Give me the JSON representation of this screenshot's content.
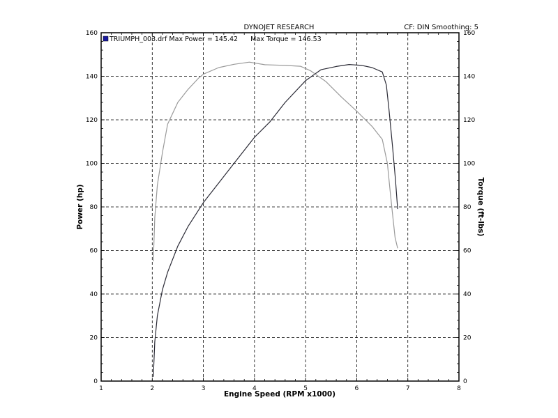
{
  "chart_data": {
    "type": "line",
    "title": "DYNOJET RESEARCH",
    "settings": "CF: DIN  Smoothing: 5",
    "legend": {
      "label": "TRIUMPH_003.drf Max Power = 145.42      Max Torque = 146.53",
      "color": "#1a1aa0"
    },
    "xlabel": "Engine Speed (RPM x1000)",
    "ylabel_left": "Power (hp)",
    "ylabel_right": "Torque (ft-lbs)",
    "xlim": [
      1,
      8
    ],
    "ylim_left": [
      0,
      160
    ],
    "ylim_right": [
      0,
      160
    ],
    "x_ticks": [
      1,
      2,
      3,
      4,
      5,
      6,
      7,
      8
    ],
    "y_ticks": [
      0,
      20,
      40,
      60,
      80,
      100,
      120,
      140,
      160
    ],
    "grid": true,
    "series": [
      {
        "name": "",
        "axis": "left",
        "color": "#2a2a35",
        "x": [
          2.02,
          2.05,
          2.1,
          2.2,
          2.3,
          2.5,
          2.7,
          3.0,
          3.3,
          3.6,
          4.0,
          4.3,
          4.6,
          5.0,
          5.3,
          5.6,
          5.85,
          6.1,
          6.3,
          6.5,
          6.58,
          6.63,
          6.7,
          6.76,
          6.8
        ],
        "y": [
          2,
          18,
          30,
          42,
          50,
          62,
          71,
          82,
          91,
          100,
          112,
          119,
          128,
          138,
          143,
          144.5,
          145.4,
          145,
          144,
          142,
          136,
          125,
          108,
          92,
          79
        ]
      },
      {
        "name": "",
        "axis": "right",
        "color": "#9a9a9a",
        "x": [
          2.02,
          2.05,
          2.1,
          2.2,
          2.3,
          2.5,
          2.7,
          2.9,
          3.0,
          3.3,
          3.6,
          3.9,
          4.2,
          4.6,
          4.9,
          5.1,
          5.4,
          5.7,
          6.0,
          6.3,
          6.5,
          6.6,
          6.65,
          6.7,
          6.75,
          6.8
        ],
        "y": [
          55,
          75,
          90,
          105,
          118,
          128,
          134,
          139,
          141,
          144,
          145.5,
          146.5,
          145.3,
          145,
          144.6,
          142.5,
          137.5,
          130.5,
          124,
          117,
          111,
          100,
          88,
          77,
          66,
          61
        ]
      }
    ]
  }
}
